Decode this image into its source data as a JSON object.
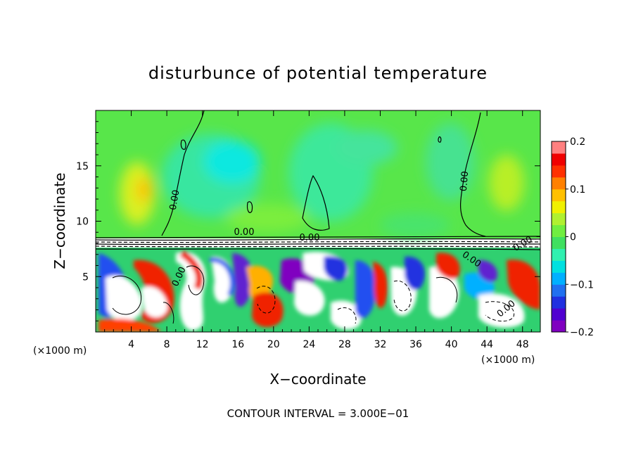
{
  "chart_data": {
    "type": "heatmap",
    "title": "disturbunce of potential temperature",
    "xlabel": "X−coordinate",
    "ylabel": "Z−coordinate",
    "x_unit": "(×1000 m)",
    "x_unit_right": "(×1000 m)",
    "contour_interval_text": "CONTOUR INTERVAL = 3.000E−01",
    "x_ticks": [
      "4",
      "8",
      "12",
      "16",
      "20",
      "24",
      "28",
      "32",
      "36",
      "40",
      "44",
      "48"
    ],
    "y_ticks": [
      "5",
      "10",
      "15"
    ],
    "xlim": [
      0,
      50
    ],
    "ylim": [
      0,
      20
    ],
    "colorbar": {
      "range": [
        -0.2,
        0.2
      ],
      "tick_labels": [
        "0.2",
        "0.1",
        "0",
        "−0.1",
        "−0.2"
      ],
      "colors": [
        "#8000c0",
        "#5000d0",
        "#2030e0",
        "#2070f0",
        "#00b0ff",
        "#00e0e0",
        "#30f0b0",
        "#40e060",
        "#70ee40",
        "#b0f030",
        "#f0f000",
        "#ffc000",
        "#ff8000",
        "#ff3000",
        "#f00000",
        "#ff8080"
      ]
    },
    "contour_labels": [
      "0.00",
      "0.00",
      "0.00",
      "0.00",
      "0.00",
      "0.00",
      "0.00",
      "0.00"
    ]
  }
}
